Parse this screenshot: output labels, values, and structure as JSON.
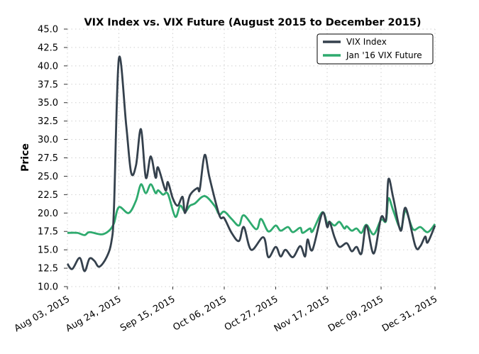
{
  "chart_data": {
    "type": "line",
    "title": "VIX Index vs. VIX Future (August 2015 to December 2015)",
    "xlabel": "",
    "ylabel": "Price",
    "ylim": [
      10.0,
      45.0
    ],
    "xlim": [
      "2015-08-03",
      "2015-12-31"
    ],
    "yticks": [
      "10.0",
      "12.5",
      "15.0",
      "17.5",
      "20.0",
      "22.5",
      "25.0",
      "27.5",
      "30.0",
      "32.5",
      "35.0",
      "37.5",
      "40.0",
      "42.5",
      "45.0"
    ],
    "xticks": [
      {
        "date": "2015-08-03",
        "label": "Aug 03, 2015"
      },
      {
        "date": "2015-08-24",
        "label": "Aug 24, 2015"
      },
      {
        "date": "2015-09-15",
        "label": "Sep 15, 2015"
      },
      {
        "date": "2015-10-06",
        "label": "Oct 06, 2015"
      },
      {
        "date": "2015-10-27",
        "label": "Oct 27, 2015"
      },
      {
        "date": "2015-11-17",
        "label": "Nov 17, 2015"
      },
      {
        "date": "2015-12-09",
        "label": "Dec 09, 2015"
      },
      {
        "date": "2015-12-31",
        "label": "Dec 31, 2015"
      }
    ],
    "grid": true,
    "legend_position": "top-right",
    "series": [
      {
        "name": "VIX Index",
        "color": "#35414d",
        "x": [
          "2015-08-03",
          "2015-08-05",
          "2015-08-08",
          "2015-08-10",
          "2015-08-12",
          "2015-08-14",
          "2015-08-16",
          "2015-08-19",
          "2015-08-21",
          "2015-08-22",
          "2015-08-24",
          "2015-08-27",
          "2015-08-29",
          "2015-08-31",
          "2015-09-02",
          "2015-09-04",
          "2015-09-06",
          "2015-09-08",
          "2015-09-09",
          "2015-09-12",
          "2015-09-13",
          "2015-09-15",
          "2015-09-17",
          "2015-09-19",
          "2015-09-20",
          "2015-09-22",
          "2015-09-25",
          "2015-09-26",
          "2015-09-28",
          "2015-09-30",
          "2015-10-04",
          "2015-10-06",
          "2015-10-09",
          "2015-10-12",
          "2015-10-14",
          "2015-10-17",
          "2015-10-22",
          "2015-10-24",
          "2015-10-27",
          "2015-10-29",
          "2015-10-31",
          "2015-11-03",
          "2015-11-06",
          "2015-11-08",
          "2015-11-09",
          "2015-11-11",
          "2015-11-15",
          "2015-11-17",
          "2015-11-18",
          "2015-11-20",
          "2015-11-22",
          "2015-11-25",
          "2015-11-27",
          "2015-11-29",
          "2015-12-01",
          "2015-12-03",
          "2015-12-06",
          "2015-12-09",
          "2015-12-11",
          "2015-12-12",
          "2015-12-14",
          "2015-12-17",
          "2015-12-19",
          "2015-12-23",
          "2015-12-25",
          "2015-12-27",
          "2015-12-28",
          "2015-12-31"
        ],
        "values": [
          13.1,
          12.4,
          13.9,
          12.1,
          13.8,
          13.5,
          12.7,
          14.0,
          16.2,
          20.7,
          41.0,
          31.9,
          25.5,
          26.5,
          31.4,
          24.8,
          27.7,
          24.8,
          26.2,
          23.1,
          24.2,
          22.0,
          21.0,
          22.2,
          20.0,
          22.4,
          23.4,
          23.2,
          27.9,
          24.8,
          19.7,
          19.3,
          17.3,
          16.2,
          18.1,
          15.0,
          16.7,
          14.0,
          15.4,
          14.1,
          15.0,
          14.0,
          15.5,
          14.1,
          16.4,
          15.0,
          20.0,
          18.1,
          18.8,
          16.7,
          15.4,
          15.9,
          14.8,
          15.4,
          14.5,
          18.3,
          14.5,
          19.4,
          19.1,
          24.6,
          22.0,
          17.6,
          20.7,
          15.5,
          15.5,
          16.8,
          16.0,
          18.3
        ]
      },
      {
        "name": "Jan '16 VIX Future",
        "color": "#2eaa6e",
        "x": [
          "2015-08-03",
          "2015-08-07",
          "2015-08-10",
          "2015-08-12",
          "2015-08-17",
          "2015-08-20",
          "2015-08-22",
          "2015-08-24",
          "2015-08-28",
          "2015-08-31",
          "2015-09-02",
          "2015-09-04",
          "2015-09-06",
          "2015-09-08",
          "2015-09-09",
          "2015-09-11",
          "2015-09-13",
          "2015-09-16",
          "2015-09-18",
          "2015-09-20",
          "2015-09-22",
          "2015-09-24",
          "2015-09-28",
          "2015-10-02",
          "2015-10-04",
          "2015-10-06",
          "2015-10-09",
          "2015-10-12",
          "2015-10-14",
          "2015-10-19",
          "2015-10-21",
          "2015-10-24",
          "2015-10-27",
          "2015-10-29",
          "2015-11-01",
          "2015-11-03",
          "2015-11-06",
          "2015-11-07",
          "2015-11-10",
          "2015-11-11",
          "2015-11-15",
          "2015-11-17",
          "2015-11-18",
          "2015-11-20",
          "2015-11-22",
          "2015-11-24",
          "2015-11-25",
          "2015-11-27",
          "2015-11-29",
          "2015-12-01",
          "2015-12-03",
          "2015-12-06",
          "2015-12-09",
          "2015-12-11",
          "2015-12-12",
          "2015-12-14",
          "2015-12-17",
          "2015-12-19",
          "2015-12-22",
          "2015-12-25",
          "2015-12-28",
          "2015-12-31"
        ],
        "values": [
          17.3,
          17.3,
          17.0,
          17.4,
          17.1,
          17.6,
          18.6,
          20.8,
          20.0,
          21.7,
          23.9,
          22.7,
          23.9,
          22.7,
          23.1,
          22.5,
          22.6,
          19.5,
          21.0,
          20.2,
          21.0,
          21.3,
          22.3,
          21.0,
          19.8,
          20.2,
          19.2,
          18.3,
          19.7,
          17.8,
          19.2,
          17.5,
          18.3,
          17.6,
          18.1,
          17.4,
          18.0,
          17.3,
          17.9,
          17.5,
          20.1,
          18.6,
          18.8,
          18.3,
          18.8,
          17.9,
          18.2,
          17.6,
          17.9,
          17.3,
          18.4,
          17.1,
          19.1,
          18.9,
          22.0,
          20.3,
          17.9,
          20.3,
          17.8,
          18.1,
          17.4,
          18.5
        ]
      }
    ]
  }
}
